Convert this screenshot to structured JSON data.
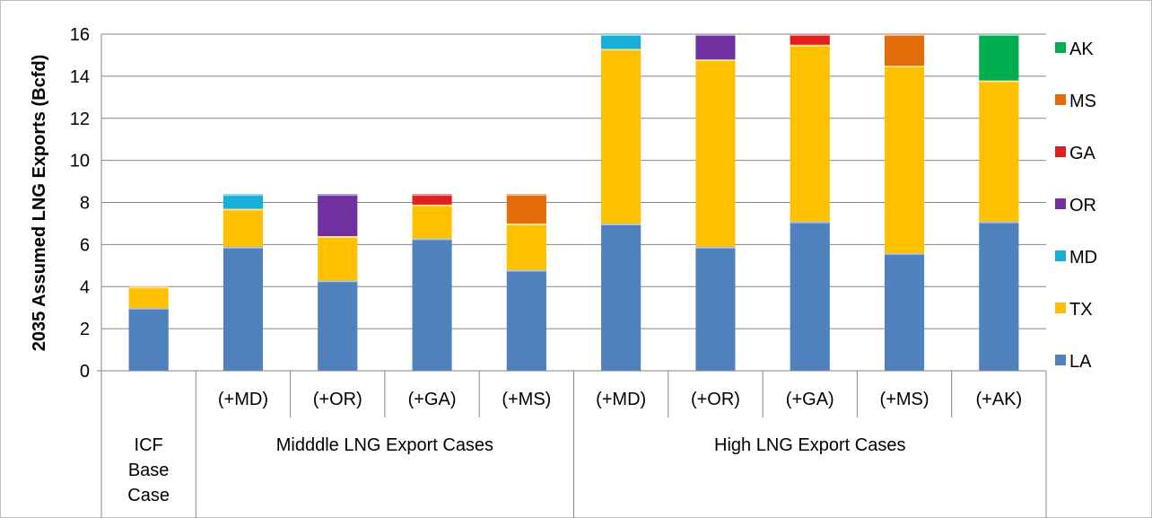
{
  "chart_data": {
    "type": "bar",
    "stacked": true,
    "ylabel": "2035 Assumed LNG Exports (Bcfd)",
    "ylim": [
      0,
      16
    ],
    "yticks": [
      0,
      2,
      4,
      6,
      8,
      10,
      12,
      14,
      16
    ],
    "grid": true,
    "legend_position": "right",
    "categories": [
      "",
      "(+MD)",
      "(+OR)",
      "(+GA)",
      "(+MS)",
      "(+MD)",
      "(+OR)",
      "(+GA)",
      "(+MS)",
      "(+AK)"
    ],
    "groups": [
      {
        "label": "ICF Base Case",
        "label_lines": [
          "ICF",
          "Base",
          "Case"
        ],
        "span": [
          0,
          0
        ]
      },
      {
        "label": "Midddle LNG Export Cases",
        "label_lines": [
          "Midddle LNG Export Cases"
        ],
        "span": [
          1,
          4
        ]
      },
      {
        "label": "High LNG Export Cases",
        "label_lines": [
          "High LNG Export Cases"
        ],
        "span": [
          5,
          9
        ]
      }
    ],
    "series": [
      {
        "name": "LA",
        "color": "#4f81bd",
        "values": [
          3.0,
          5.9,
          4.3,
          6.3,
          4.8,
          7.0,
          5.9,
          7.1,
          5.6,
          7.1
        ]
      },
      {
        "name": "TX",
        "color": "#ffc000",
        "values": [
          1.0,
          1.8,
          2.1,
          1.6,
          2.2,
          8.3,
          8.9,
          8.4,
          8.9,
          6.7
        ]
      },
      {
        "name": "MD",
        "color": "#17afd8",
        "values": [
          0,
          0.7,
          0,
          0,
          0,
          0.7,
          0,
          0,
          0,
          0
        ]
      },
      {
        "name": "OR",
        "color": "#7030a0",
        "values": [
          0,
          0,
          2.0,
          0,
          0,
          0,
          1.2,
          0,
          0,
          0
        ]
      },
      {
        "name": "GA",
        "color": "#e01f1f",
        "values": [
          0,
          0,
          0,
          0.5,
          0,
          0,
          0,
          0.5,
          0,
          0
        ]
      },
      {
        "name": "MS",
        "color": "#e36c0a",
        "values": [
          0,
          0,
          0,
          0,
          1.4,
          0,
          0,
          0,
          1.5,
          0
        ]
      },
      {
        "name": "AK",
        "color": "#00b050",
        "values": [
          0,
          0,
          0,
          0,
          0,
          0,
          0,
          0,
          0,
          2.2
        ]
      }
    ],
    "colors": {
      "grid": "#868686",
      "axis": "#868686",
      "frame": "#bfbfbf"
    }
  }
}
